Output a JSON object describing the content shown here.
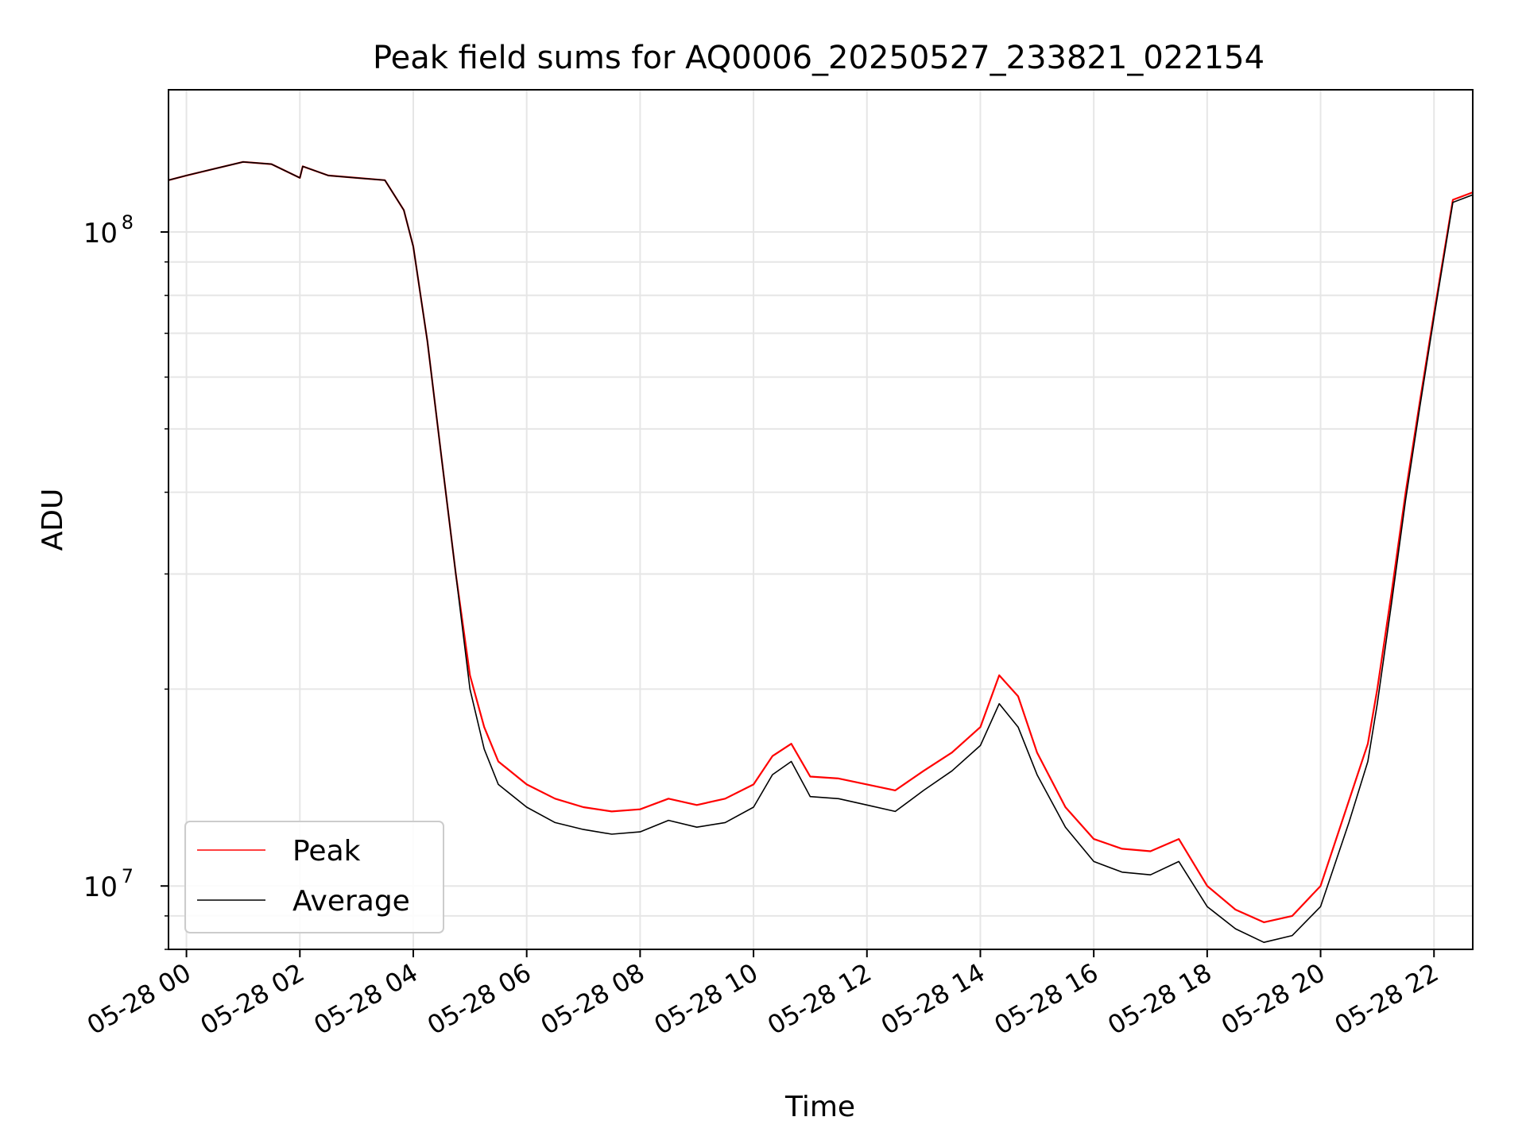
{
  "chart_data": {
    "type": "line",
    "title": "Peak field sums for AQ0006_20250527_233821_022154",
    "xlabel": "Time",
    "ylabel": "ADU",
    "yscale": "log",
    "ylim": [
      8000000,
      165000000
    ],
    "xlim": [
      "2025-05-27 23:41",
      "2025-05-28 22:41"
    ],
    "grid": true,
    "legend": {
      "placement": "lower-left"
    },
    "x_ticks": [
      "05-28 00",
      "05-28 02",
      "05-28 04",
      "05-28 06",
      "05-28 08",
      "05-28 10",
      "05-28 12",
      "05-28 14",
      "05-28 16",
      "05-28 18",
      "05-28 20",
      "05-28 22"
    ],
    "y_ticks": [
      {
        "value": 100000000,
        "base": "10",
        "exp": "8"
      },
      {
        "value": 10000000,
        "base": "10",
        "exp": "7"
      }
    ],
    "x": [
      "2025-05-27 23:41",
      "2025-05-28 00:00",
      "2025-05-28 00:30",
      "2025-05-28 01:00",
      "2025-05-28 01:30",
      "2025-05-28 02:00",
      "2025-05-28 02:03",
      "2025-05-28 02:30",
      "2025-05-28 03:00",
      "2025-05-28 03:30",
      "2025-05-28 03:50",
      "2025-05-28 04:00",
      "2025-05-28 04:15",
      "2025-05-28 04:30",
      "2025-05-28 04:45",
      "2025-05-28 05:00",
      "2025-05-28 05:15",
      "2025-05-28 05:30",
      "2025-05-28 06:00",
      "2025-05-28 06:30",
      "2025-05-28 07:00",
      "2025-05-28 07:30",
      "2025-05-28 08:00",
      "2025-05-28 08:30",
      "2025-05-28 09:00",
      "2025-05-28 09:30",
      "2025-05-28 10:00",
      "2025-05-28 10:20",
      "2025-05-28 10:40",
      "2025-05-28 11:00",
      "2025-05-28 11:30",
      "2025-05-28 12:00",
      "2025-05-28 12:30",
      "2025-05-28 13:00",
      "2025-05-28 13:30",
      "2025-05-28 14:00",
      "2025-05-28 14:20",
      "2025-05-28 14:40",
      "2025-05-28 15:00",
      "2025-05-28 15:30",
      "2025-05-28 16:00",
      "2025-05-28 16:30",
      "2025-05-28 17:00",
      "2025-05-28 17:30",
      "2025-05-28 18:00",
      "2025-05-28 18:30",
      "2025-05-28 19:00",
      "2025-05-28 19:30",
      "2025-05-28 20:00",
      "2025-05-28 20:30",
      "2025-05-28 20:50",
      "2025-05-28 21:00",
      "2025-05-28 21:15",
      "2025-05-28 21:30",
      "2025-05-28 21:45",
      "2025-05-28 22:00",
      "2025-05-28 22:20",
      "2025-05-28 22:41"
    ],
    "series": [
      {
        "name": "Peak",
        "color": "#ff0000",
        "values": [
          120000000,
          122000000,
          125000000,
          128000000,
          127000000,
          121000000,
          126000000,
          122000000,
          121000000,
          120000000,
          108000000,
          95000000,
          68000000,
          45000000,
          30000000,
          21000000,
          17500000,
          15500000,
          14300000,
          13600000,
          13200000,
          13000000,
          13100000,
          13600000,
          13300000,
          13600000,
          14300000,
          15800000,
          16500000,
          14700000,
          14600000,
          14300000,
          14000000,
          15000000,
          16000000,
          17500000,
          21000000,
          19500000,
          16000000,
          13200000,
          11800000,
          11400000,
          11300000,
          11800000,
          10000000,
          9200000,
          8800000,
          9000000,
          10000000,
          13500000,
          16500000,
          20000000,
          28000000,
          40000000,
          55000000,
          75000000,
          112000000,
          115000000
        ]
      },
      {
        "name": "Average",
        "color": "#000000",
        "values": [
          120000000,
          122000000,
          125000000,
          128000000,
          127000000,
          121000000,
          126000000,
          122000000,
          121000000,
          120000000,
          108000000,
          95000000,
          68000000,
          45000000,
          30000000,
          20000000,
          16200000,
          14300000,
          13200000,
          12500000,
          12200000,
          12000000,
          12100000,
          12600000,
          12300000,
          12500000,
          13200000,
          14800000,
          15500000,
          13700000,
          13600000,
          13300000,
          13000000,
          14000000,
          15000000,
          16400000,
          19000000,
          17500000,
          14800000,
          12300000,
          10900000,
          10500000,
          10400000,
          10900000,
          9300000,
          8600000,
          8200000,
          8400000,
          9300000,
          12500000,
          15500000,
          19000000,
          27000000,
          39000000,
          54000000,
          74000000,
          111000000,
          114000000
        ]
      }
    ]
  }
}
